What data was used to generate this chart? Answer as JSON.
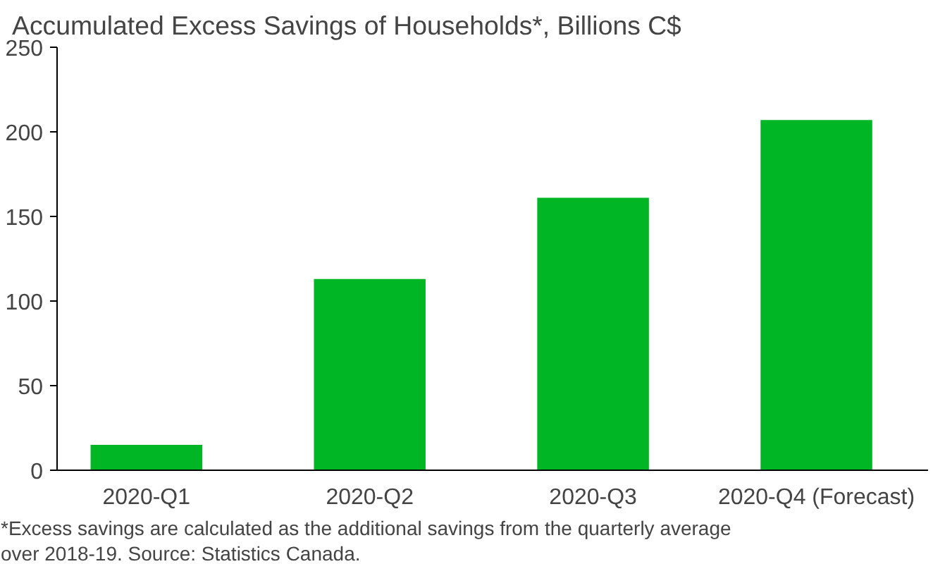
{
  "chart_data": {
    "type": "bar",
    "title": "Accumulated Excess Savings of Households*, Billions C$",
    "categories": [
      "2020-Q1",
      "2020-Q2",
      "2020-Q3",
      "2020-Q4 (Forecast)"
    ],
    "values": [
      15,
      113,
      161,
      207
    ],
    "color": "#00b624",
    "ylim": [
      0,
      250
    ],
    "yticks": [
      0,
      50,
      100,
      150,
      200,
      250
    ],
    "grid": false,
    "annotations": [
      "*Excess savings are calculated as the additional savings from the quarterly average over 2018-19. Source: Statistics Canada."
    ]
  }
}
